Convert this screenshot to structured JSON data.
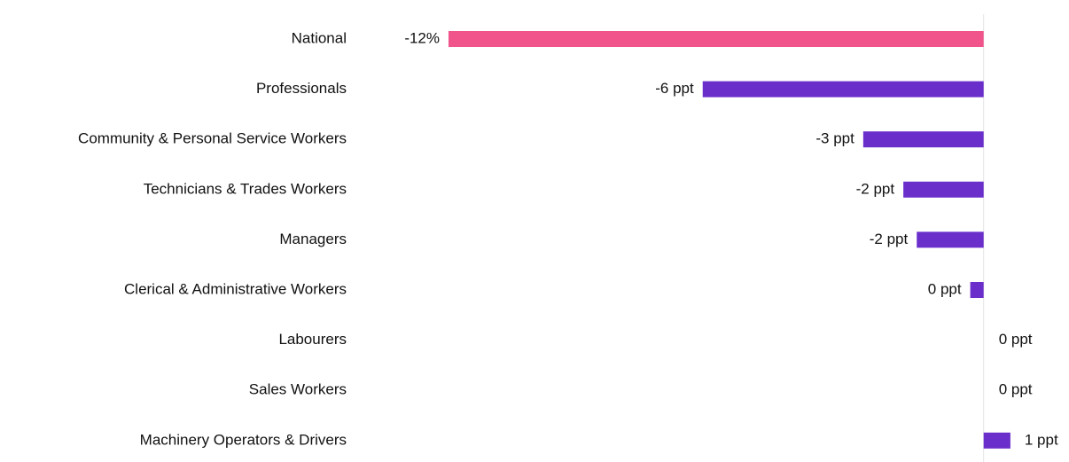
{
  "chart_data": {
    "type": "barh",
    "categories": [
      "National",
      "Professionals",
      "Community & Personal Service Workers",
      "Technicians & Trades Workers",
      "Managers",
      "Clerical & Administrative Workers",
      "Labourers",
      "Sales Workers",
      "Machinery Operators & Drivers"
    ],
    "values": [
      -12,
      -6.3,
      -2.7,
      -1.8,
      -1.5,
      -0.3,
      0,
      0,
      0.6
    ],
    "value_labels": [
      "-12%",
      "-6 ppt",
      "-3 ppt",
      "-2 ppt",
      "-2 ppt",
      "0 ppt",
      "0 ppt",
      "0 ppt",
      "1 ppt"
    ],
    "colors": [
      "#f0548a",
      "#6a2ecb",
      "#6a2ecb",
      "#6a2ecb",
      "#6a2ecb",
      "#6a2ecb",
      "#6a2ecb",
      "#6a2ecb",
      "#6a2ecb"
    ],
    "xlim": [
      -12,
      1
    ]
  }
}
